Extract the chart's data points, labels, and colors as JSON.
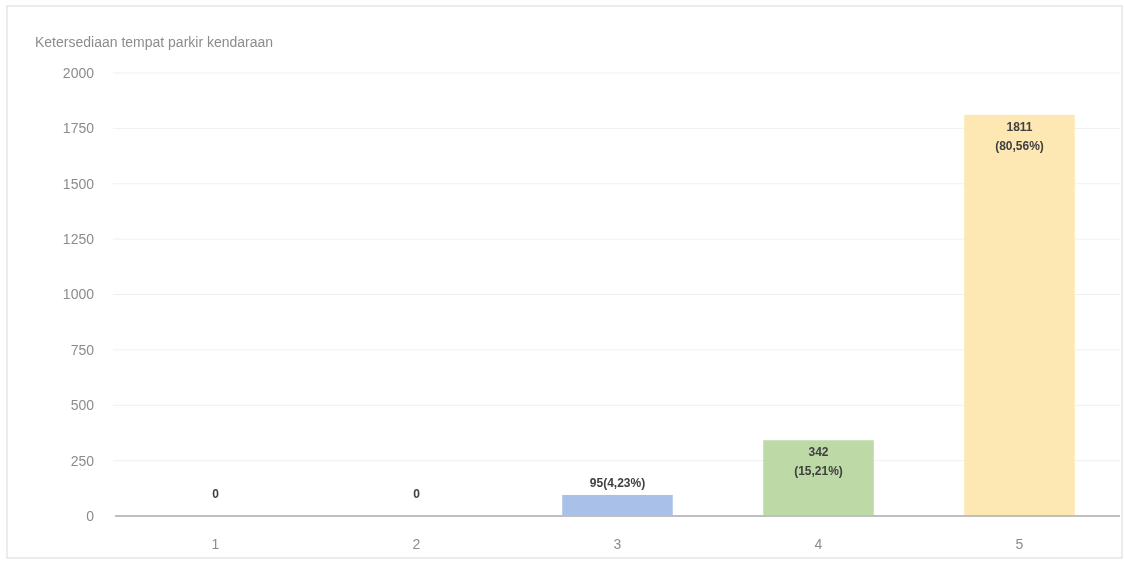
{
  "chart_data": {
    "type": "bar",
    "title": "Ketersediaan tempat parkir kendaraan",
    "categories": [
      "1",
      "2",
      "3",
      "4",
      "5"
    ],
    "values": [
      0,
      0,
      95,
      342,
      1811
    ],
    "colors": [
      "#f4b183",
      "#c9c9c9",
      "#a9c1e8",
      "#bcd9a6",
      "#fde8b4"
    ],
    "value_labels": [
      "0",
      "0",
      "95(4,23%)",
      "342\n(15,21%)",
      "1811\n(80,56%)"
    ],
    "ylim": [
      0,
      2000
    ],
    "yticks": [
      0,
      250,
      500,
      750,
      1000,
      1250,
      1500,
      1750,
      2000
    ],
    "grid": "y"
  }
}
